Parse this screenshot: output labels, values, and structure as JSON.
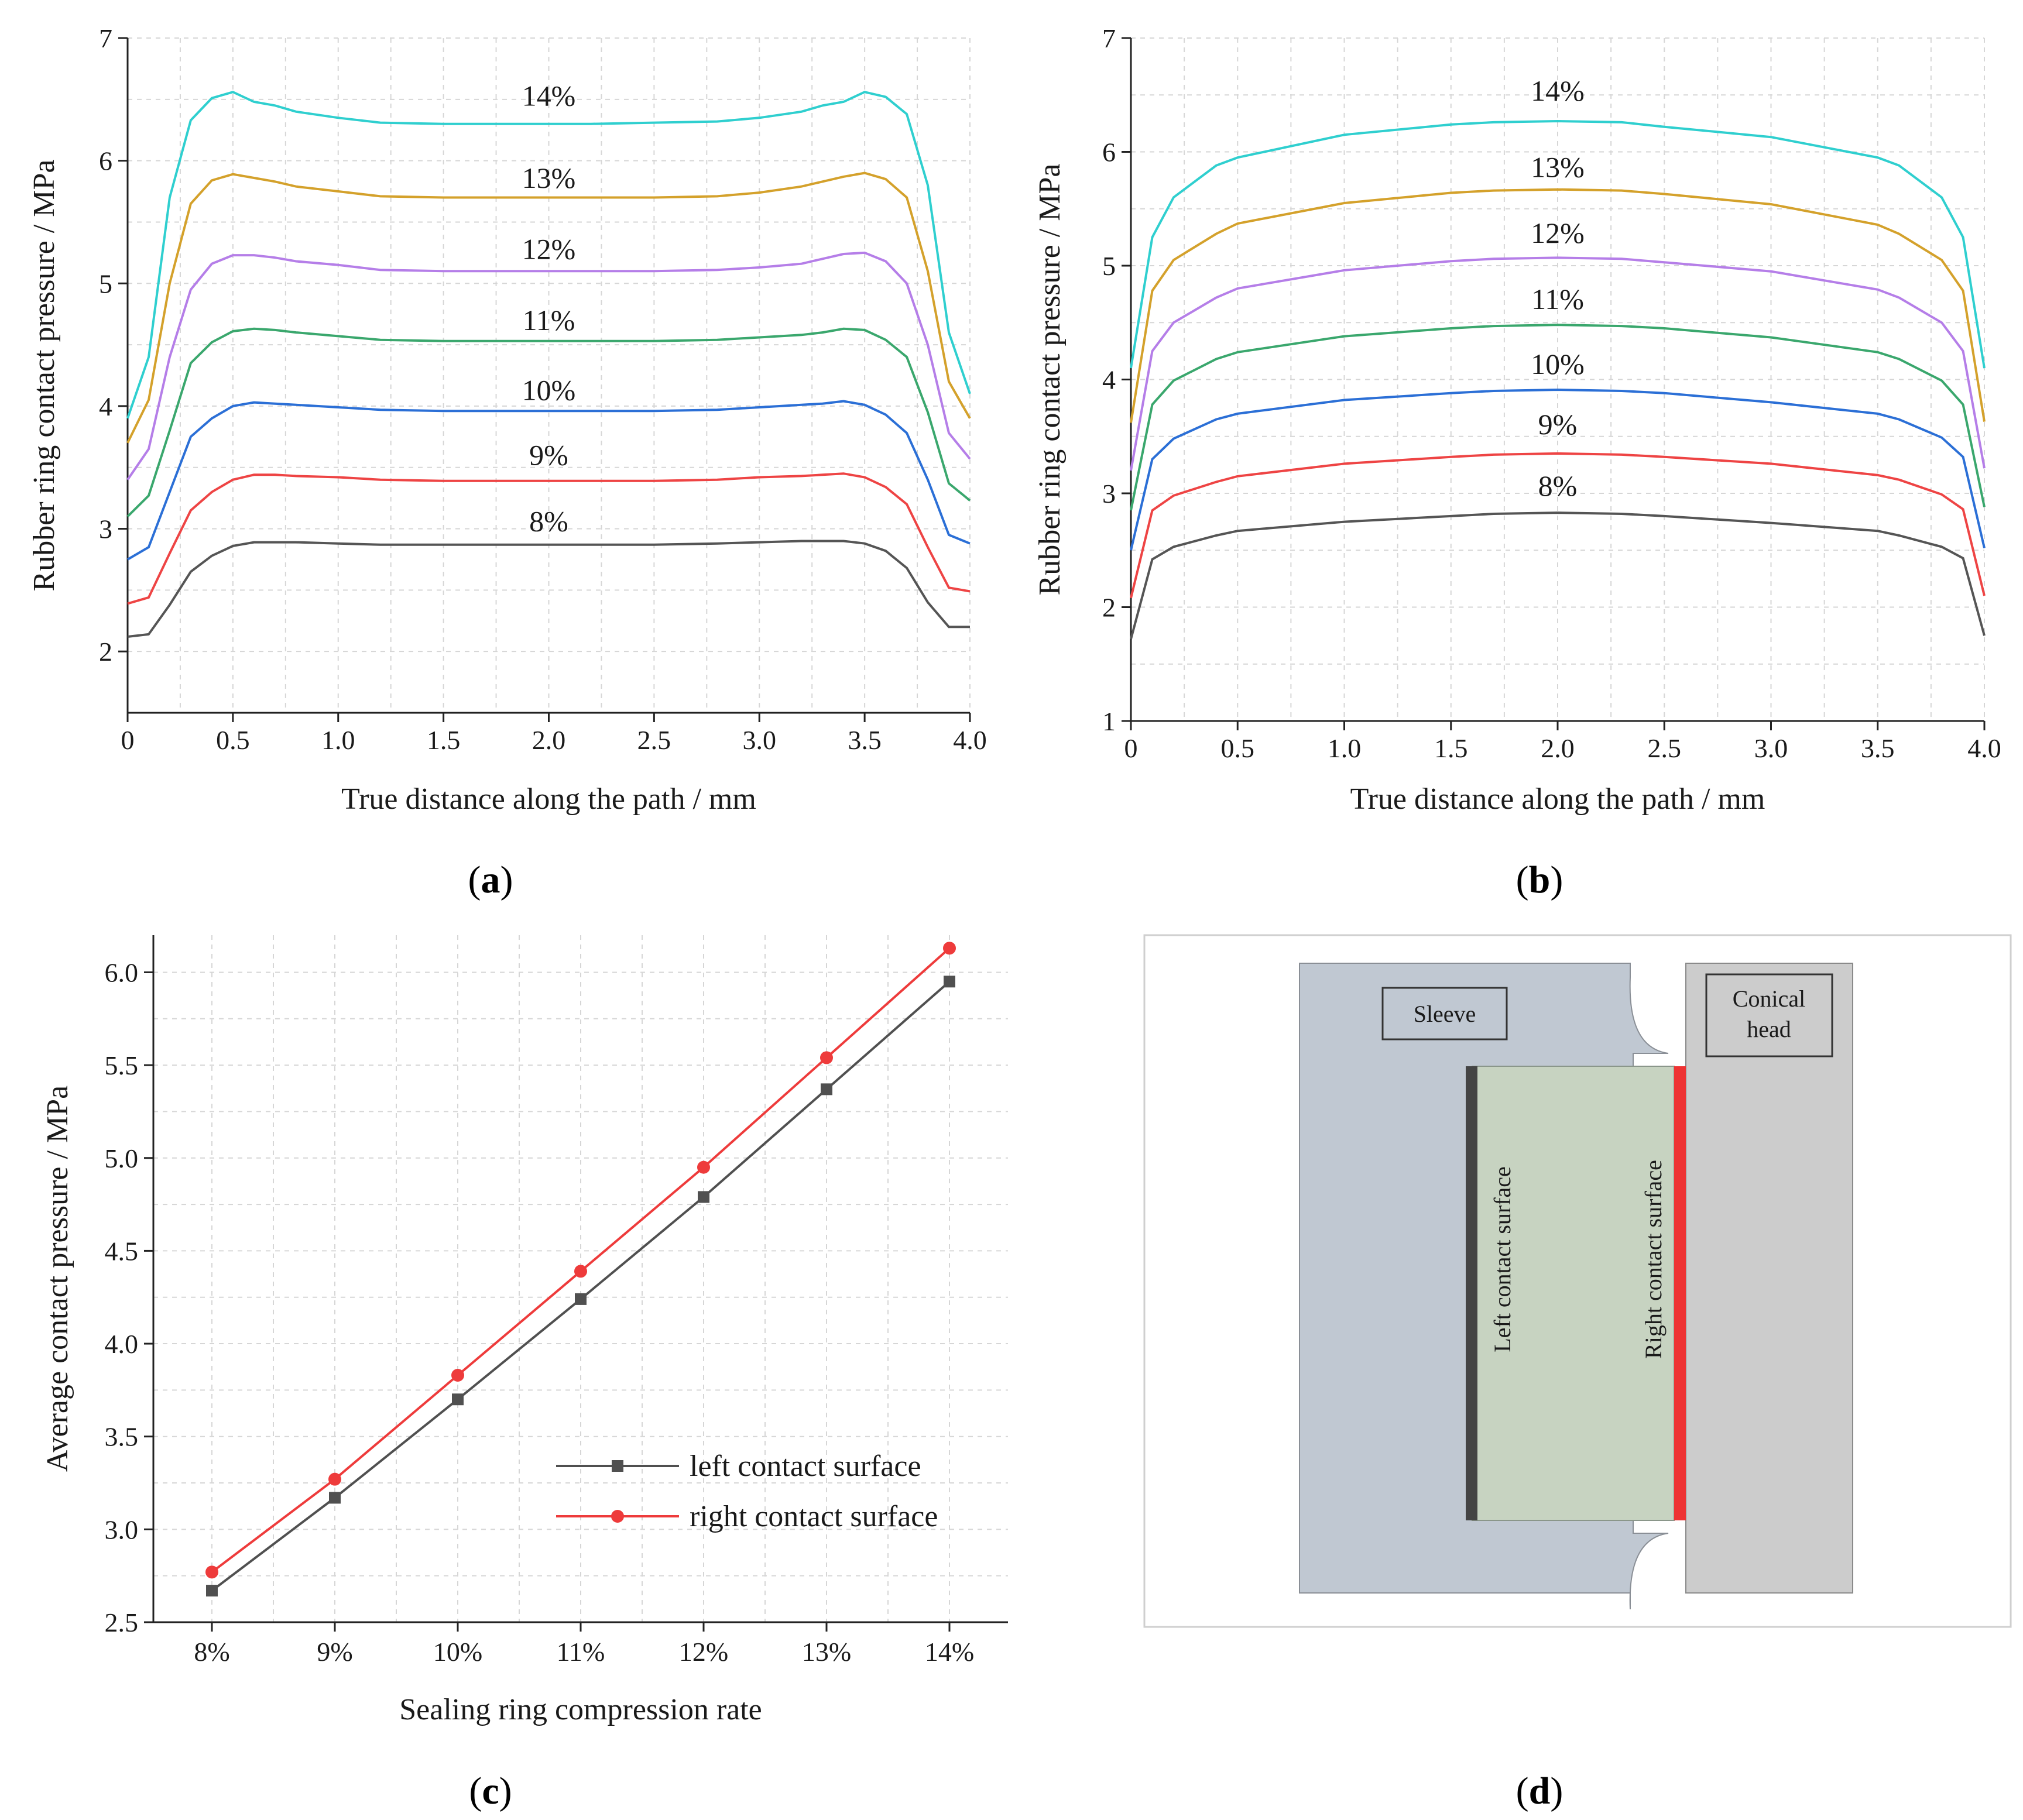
{
  "chart_data": [
    {
      "id": "a",
      "type": "line",
      "panel_label": "a",
      "xlabel": "True distance along the path / mm",
      "ylabel": "Rubber ring contact pressure / MPa",
      "xlim": [
        0,
        4.0
      ],
      "ylim": [
        1.5,
        7
      ],
      "xticks": [
        0,
        0.5,
        1.0,
        1.5,
        2.0,
        2.5,
        3.0,
        3.5,
        4.0
      ],
      "xtick_labels": [
        "0",
        "0.5",
        "1.0",
        "1.5",
        "2.0",
        "2.5",
        "3.0",
        "3.5",
        "4.0"
      ],
      "yticks": [
        2,
        3,
        4,
        5,
        6,
        7
      ],
      "ytick_labels": [
        "2",
        "3",
        "4",
        "5",
        "6",
        "7"
      ],
      "grid": true,
      "x": [
        0,
        0.1,
        0.2,
        0.3,
        0.4,
        0.5,
        0.6,
        0.7,
        0.8,
        1.0,
        1.2,
        1.5,
        1.8,
        2.0,
        2.2,
        2.5,
        2.8,
        3.0,
        3.2,
        3.3,
        3.4,
        3.5,
        3.6,
        3.7,
        3.8,
        3.9,
        4.0
      ],
      "series": [
        {
          "name": "8%",
          "label": "8%",
          "color": "#555555",
          "label_x": 2.0,
          "label_y": 2.98,
          "values": [
            2.12,
            2.14,
            2.38,
            2.65,
            2.78,
            2.86,
            2.89,
            2.89,
            2.89,
            2.88,
            2.87,
            2.87,
            2.87,
            2.87,
            2.87,
            2.87,
            2.88,
            2.89,
            2.9,
            2.9,
            2.9,
            2.88,
            2.82,
            2.68,
            2.4,
            2.2,
            2.2
          ]
        },
        {
          "name": "9%",
          "label": "9%",
          "color": "#ee4444",
          "label_x": 2.0,
          "label_y": 3.52,
          "values": [
            2.39,
            2.44,
            2.8,
            3.15,
            3.3,
            3.4,
            3.44,
            3.44,
            3.43,
            3.42,
            3.4,
            3.39,
            3.39,
            3.39,
            3.39,
            3.39,
            3.4,
            3.42,
            3.43,
            3.44,
            3.45,
            3.42,
            3.34,
            3.2,
            2.85,
            2.52,
            2.49
          ]
        },
        {
          "name": "10%",
          "label": "10%",
          "color": "#2b6fd6",
          "label_x": 2.0,
          "label_y": 4.05,
          "values": [
            2.75,
            2.85,
            3.3,
            3.75,
            3.9,
            4.0,
            4.03,
            4.02,
            4.01,
            3.99,
            3.97,
            3.96,
            3.96,
            3.96,
            3.96,
            3.96,
            3.97,
            3.99,
            4.01,
            4.02,
            4.04,
            4.01,
            3.93,
            3.78,
            3.4,
            2.95,
            2.88
          ]
        },
        {
          "name": "11%",
          "label": "11%",
          "color": "#3aa76d",
          "label_x": 2.0,
          "label_y": 4.62,
          "values": [
            3.1,
            3.27,
            3.8,
            4.35,
            4.52,
            4.61,
            4.63,
            4.62,
            4.6,
            4.57,
            4.54,
            4.53,
            4.53,
            4.53,
            4.53,
            4.53,
            4.54,
            4.56,
            4.58,
            4.6,
            4.63,
            4.62,
            4.54,
            4.4,
            3.95,
            3.37,
            3.23
          ]
        },
        {
          "name": "12%",
          "label": "12%",
          "color": "#b57ee8",
          "label_x": 2.0,
          "label_y": 5.2,
          "values": [
            3.4,
            3.65,
            4.4,
            4.95,
            5.16,
            5.23,
            5.23,
            5.21,
            5.18,
            5.15,
            5.11,
            5.1,
            5.1,
            5.1,
            5.1,
            5.1,
            5.11,
            5.13,
            5.16,
            5.2,
            5.24,
            5.25,
            5.18,
            5.0,
            4.5,
            3.78,
            3.57
          ]
        },
        {
          "name": "13%",
          "label": "13%",
          "color": "#d4a12b",
          "label_x": 2.0,
          "label_y": 5.78,
          "values": [
            3.7,
            4.05,
            5.0,
            5.65,
            5.84,
            5.89,
            5.86,
            5.83,
            5.79,
            5.75,
            5.71,
            5.7,
            5.7,
            5.7,
            5.7,
            5.7,
            5.71,
            5.74,
            5.79,
            5.83,
            5.87,
            5.9,
            5.85,
            5.7,
            5.1,
            4.2,
            3.9
          ]
        },
        {
          "name": "14%",
          "label": "14%",
          "color": "#2fcfcf",
          "label_x": 2.0,
          "label_y": 6.45,
          "values": [
            3.9,
            4.4,
            5.7,
            6.33,
            6.51,
            6.56,
            6.48,
            6.45,
            6.4,
            6.35,
            6.31,
            6.3,
            6.3,
            6.3,
            6.3,
            6.31,
            6.32,
            6.35,
            6.4,
            6.45,
            6.48,
            6.56,
            6.52,
            6.38,
            5.8,
            4.6,
            4.1
          ]
        }
      ]
    },
    {
      "id": "b",
      "type": "line",
      "panel_label": "b",
      "xlabel": "True distance along the path / mm",
      "ylabel": "Rubber ring contact pressure / MPa",
      "xlim": [
        0,
        4.0
      ],
      "ylim": [
        1,
        7
      ],
      "xticks": [
        0,
        0.5,
        1.0,
        1.5,
        2.0,
        2.5,
        3.0,
        3.5,
        4.0
      ],
      "xtick_labels": [
        "0",
        "0.5",
        "1.0",
        "1.5",
        "2.0",
        "2.5",
        "3.0",
        "3.5",
        "4.0"
      ],
      "yticks": [
        1,
        2,
        3,
        4,
        5,
        6,
        7
      ],
      "ytick_labels": [
        "1",
        "2",
        "3",
        "4",
        "5",
        "6",
        "7"
      ],
      "grid": true,
      "x": [
        0,
        0.1,
        0.2,
        0.4,
        0.5,
        1.0,
        1.5,
        1.7,
        2.0,
        2.3,
        2.5,
        3.0,
        3.5,
        3.6,
        3.8,
        3.9,
        4.0
      ],
      "series": [
        {
          "name": "8%",
          "label": "8%",
          "color": "#555555",
          "label_x": 2.0,
          "label_y": 2.98,
          "values": [
            1.72,
            2.42,
            2.53,
            2.63,
            2.67,
            2.75,
            2.8,
            2.82,
            2.83,
            2.82,
            2.8,
            2.74,
            2.67,
            2.63,
            2.53,
            2.43,
            1.75
          ]
        },
        {
          "name": "9%",
          "label": "9%",
          "color": "#ee4444",
          "label_x": 2.0,
          "label_y": 3.52,
          "values": [
            2.08,
            2.85,
            2.98,
            3.1,
            3.15,
            3.26,
            3.32,
            3.34,
            3.35,
            3.34,
            3.32,
            3.26,
            3.16,
            3.12,
            2.99,
            2.86,
            2.1
          ]
        },
        {
          "name": "10%",
          "label": "10%",
          "color": "#2b6fd6",
          "label_x": 2.0,
          "label_y": 4.05,
          "values": [
            2.5,
            3.3,
            3.48,
            3.65,
            3.7,
            3.82,
            3.88,
            3.9,
            3.91,
            3.9,
            3.88,
            3.8,
            3.7,
            3.65,
            3.49,
            3.32,
            2.52
          ]
        },
        {
          "name": "11%",
          "label": "11%",
          "color": "#3aa76d",
          "label_x": 2.0,
          "label_y": 4.62,
          "values": [
            2.85,
            3.78,
            3.99,
            4.18,
            4.24,
            4.38,
            4.45,
            4.47,
            4.48,
            4.47,
            4.45,
            4.37,
            4.24,
            4.18,
            3.99,
            3.78,
            2.88
          ]
        },
        {
          "name": "12%",
          "label": "12%",
          "color": "#b57ee8",
          "label_x": 2.0,
          "label_y": 5.2,
          "values": [
            3.2,
            4.25,
            4.5,
            4.72,
            4.8,
            4.96,
            5.04,
            5.06,
            5.07,
            5.06,
            5.03,
            4.95,
            4.79,
            4.72,
            4.5,
            4.25,
            3.22
          ]
        },
        {
          "name": "13%",
          "label": "13%",
          "color": "#d4a12b",
          "label_x": 2.0,
          "label_y": 5.78,
          "values": [
            3.62,
            4.78,
            5.05,
            5.28,
            5.37,
            5.55,
            5.64,
            5.66,
            5.67,
            5.66,
            5.63,
            5.54,
            5.36,
            5.28,
            5.05,
            4.78,
            3.63
          ]
        },
        {
          "name": "14%",
          "label": "14%",
          "color": "#2fcfcf",
          "label_x": 2.0,
          "label_y": 6.45,
          "values": [
            4.1,
            5.25,
            5.6,
            5.88,
            5.95,
            6.15,
            6.24,
            6.26,
            6.27,
            6.26,
            6.22,
            6.13,
            5.95,
            5.88,
            5.6,
            5.25,
            4.1
          ]
        }
      ]
    },
    {
      "id": "c",
      "type": "line",
      "panel_label": "c",
      "xlabel": "Sealing ring compression rate",
      "ylabel": "Average contact pressure / MPa",
      "categories": [
        "8%",
        "9%",
        "10%",
        "11%",
        "12%",
        "13%",
        "14%"
      ],
      "ylim": [
        2.5,
        6.2
      ],
      "yticks": [
        2.5,
        3.0,
        3.5,
        4.0,
        4.5,
        5.0,
        5.5,
        6.0
      ],
      "ytick_labels": [
        "2.5",
        "3.0",
        "3.5",
        "4.0",
        "4.5",
        "5.0",
        "5.5",
        "6.0"
      ],
      "grid": true,
      "legend_position": "lower-right",
      "series": [
        {
          "name": "left contact surface",
          "color": "#505050",
          "marker": "square",
          "values": [
            2.67,
            3.17,
            3.7,
            4.24,
            4.79,
            5.37,
            5.95
          ]
        },
        {
          "name": "right contact surface",
          "color": "#ee3b3b",
          "marker": "circle",
          "values": [
            2.77,
            3.27,
            3.83,
            4.39,
            4.95,
            5.54,
            6.13
          ]
        }
      ]
    }
  ],
  "diagram_d": {
    "panel_label": "d",
    "sleeve_label": "Sleeve",
    "head_label_line1": "Conical",
    "head_label_line2": "head",
    "left_surface_label": "Left contact surface",
    "right_surface_label": "Right contact surface",
    "colors": {
      "sleeve": "#c0c8d2",
      "head": "#cccccc",
      "ring": "#c7d3c1",
      "left_surface": "#444444",
      "right_surface": "#ee3333"
    }
  }
}
